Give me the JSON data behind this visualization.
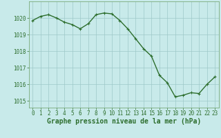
{
  "x": [
    0,
    1,
    2,
    3,
    4,
    5,
    6,
    7,
    8,
    9,
    10,
    11,
    12,
    13,
    14,
    15,
    16,
    17,
    18,
    19,
    20,
    21,
    22,
    23
  ],
  "y": [
    1019.85,
    1020.1,
    1020.2,
    1020.0,
    1019.75,
    1019.6,
    1019.35,
    1019.65,
    1020.2,
    1020.3,
    1020.25,
    1019.85,
    1019.35,
    1018.75,
    1018.15,
    1017.7,
    1016.55,
    1016.1,
    1015.25,
    1015.35,
    1015.5,
    1015.45,
    1016.0,
    1016.45
  ],
  "line_color": "#2d6e2d",
  "marker": "+",
  "marker_size": 3,
  "marker_linewidth": 0.8,
  "background_color": "#c8eaea",
  "grid_color": "#9ec8c8",
  "ylim": [
    1014.6,
    1021.0
  ],
  "xlim": [
    -0.5,
    23.5
  ],
  "yticks": [
    1015,
    1016,
    1017,
    1018,
    1019,
    1020
  ],
  "xticks": [
    0,
    1,
    2,
    3,
    4,
    5,
    6,
    7,
    8,
    9,
    10,
    11,
    12,
    13,
    14,
    15,
    16,
    17,
    18,
    19,
    20,
    21,
    22,
    23
  ],
  "xlabel": "Graphe pression niveau de la mer (hPa)",
  "xlabel_fontsize": 7,
  "tick_fontsize": 5.5,
  "line_width": 1.0,
  "spine_color": "#7aaa7a"
}
